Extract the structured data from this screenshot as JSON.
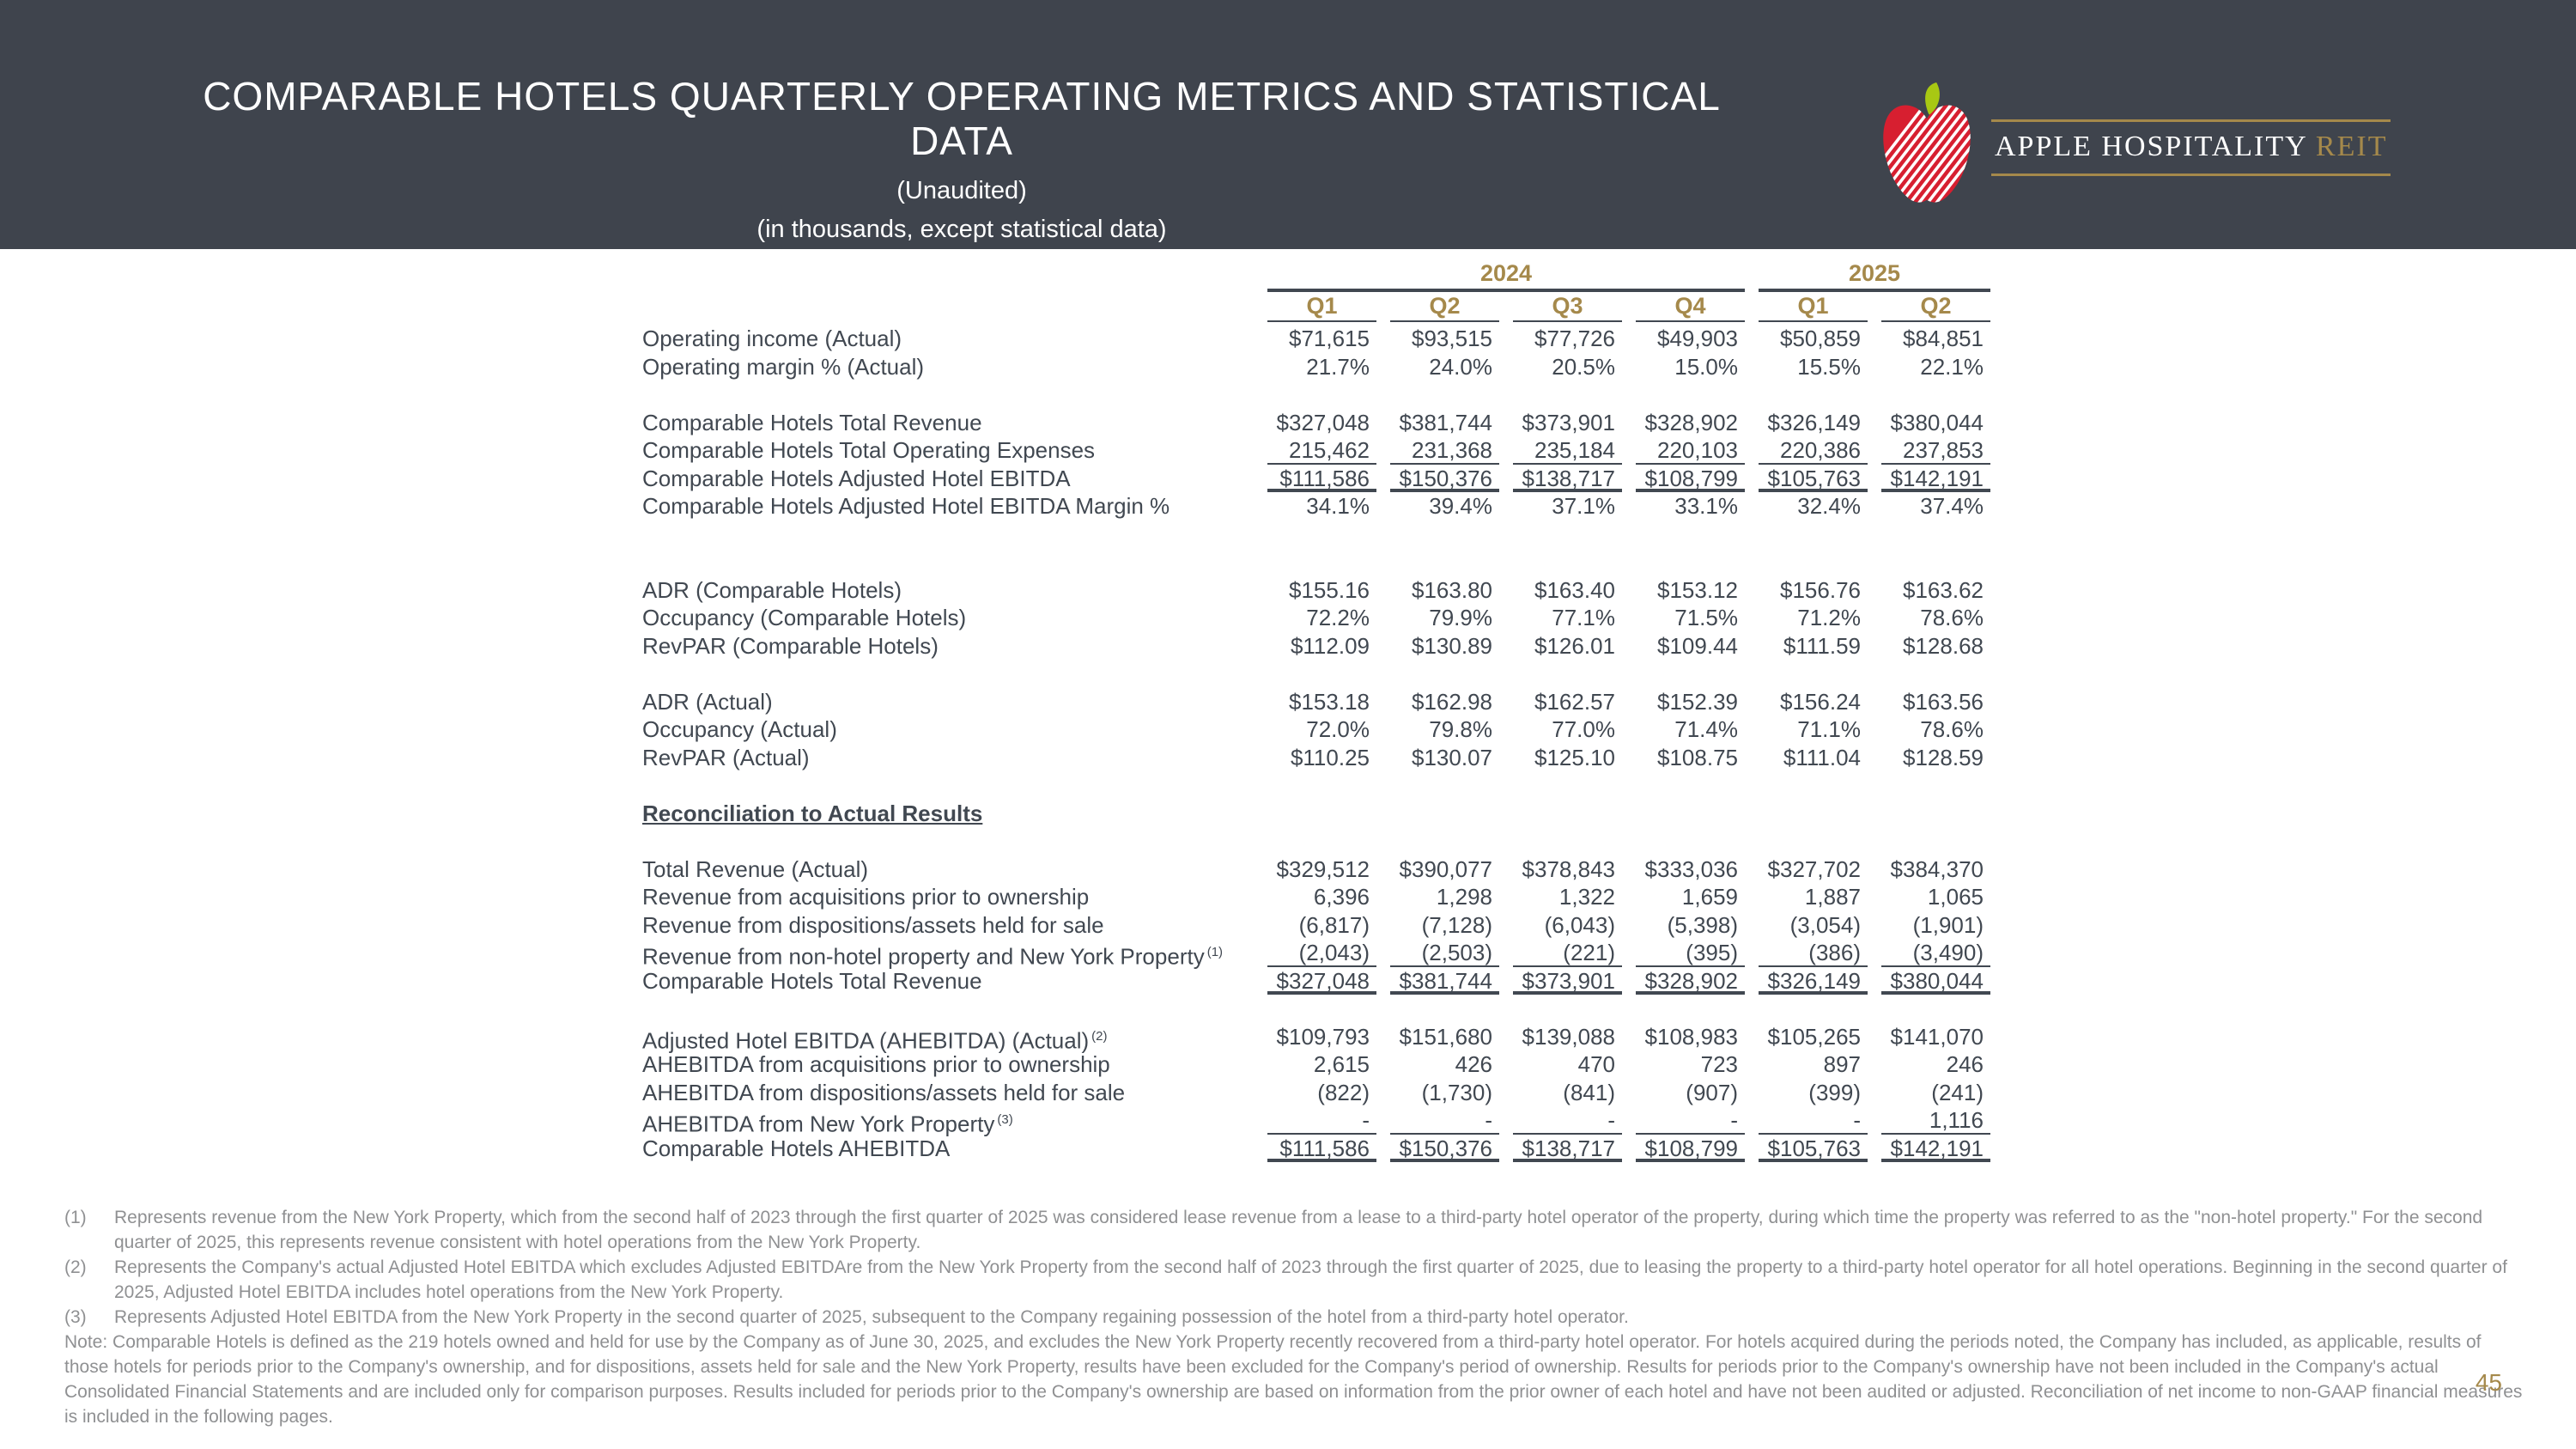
{
  "header": {
    "title": "COMPARABLE HOTELS QUARTERLY OPERATING METRICS AND STATISTICAL DATA",
    "subtitle_unaudited": "(Unaudited)",
    "subtitle_units": "(in thousands, except statistical data)",
    "logo": {
      "name_primary": "APPLE HOSPITALITY",
      "name_accent": "REIT"
    }
  },
  "colors": {
    "header_bg": "#3f444d",
    "accent_gold": "#a5894b",
    "table_text": "#414851",
    "footnote_gray": "#8f9092",
    "apple_red": "#d71f30",
    "leaf_green": "#a8c813"
  },
  "table": {
    "year_groups": [
      {
        "label": "2024",
        "span": 4
      },
      {
        "label": "2025",
        "span": 2
      }
    ],
    "quarter_headers": [
      "Q1",
      "Q2",
      "Q3",
      "Q4",
      "Q1",
      "Q2"
    ],
    "rows": [
      {
        "label": "Operating income (Actual)",
        "values": [
          "$71,615",
          "$93,515",
          "$77,726",
          "$49,903",
          "$50,859",
          "$84,851"
        ]
      },
      {
        "label": "Operating margin % (Actual)",
        "values": [
          "21.7%",
          "24.0%",
          "20.5%",
          "15.0%",
          "15.5%",
          "22.1%"
        ]
      },
      {
        "label": "Comparable Hotels Total Revenue",
        "space_before": 1,
        "values": [
          "$327,048",
          "$381,744",
          "$373,901",
          "$328,902",
          "$326,149",
          "$380,044"
        ]
      },
      {
        "label": "Comparable Hotels Total Operating Expenses",
        "underline": "single",
        "values": [
          "215,462",
          "231,368",
          "235,184",
          "220,103",
          "220,386",
          "237,853"
        ]
      },
      {
        "label": "Comparable Hotels Adjusted Hotel EBITDA",
        "underline": "double",
        "values": [
          "$111,586",
          "$150,376",
          "$138,717",
          "$108,799",
          "$105,763",
          "$142,191"
        ]
      },
      {
        "label": "Comparable Hotels Adjusted Hotel EBITDA Margin %",
        "values": [
          "34.1%",
          "39.4%",
          "37.1%",
          "33.1%",
          "32.4%",
          "37.4%"
        ]
      },
      {
        "label": "ADR (Comparable Hotels)",
        "space_before": 2,
        "values": [
          "$155.16",
          "$163.80",
          "$163.40",
          "$153.12",
          "$156.76",
          "$163.62"
        ]
      },
      {
        "label": "Occupancy (Comparable Hotels)",
        "values": [
          "72.2%",
          "79.9%",
          "77.1%",
          "71.5%",
          "71.2%",
          "78.6%"
        ]
      },
      {
        "label": "RevPAR (Comparable Hotels)",
        "values": [
          "$112.09",
          "$130.89",
          "$126.01",
          "$109.44",
          "$111.59",
          "$128.68"
        ]
      },
      {
        "label": "ADR (Actual)",
        "space_before": 1,
        "values": [
          "$153.18",
          "$162.98",
          "$162.57",
          "$152.39",
          "$156.24",
          "$163.56"
        ]
      },
      {
        "label": "Occupancy (Actual)",
        "values": [
          "72.0%",
          "79.8%",
          "77.0%",
          "71.4%",
          "71.1%",
          "78.6%"
        ]
      },
      {
        "label": "RevPAR (Actual)",
        "values": [
          "$110.25",
          "$130.07",
          "$125.10",
          "$108.75",
          "$111.04",
          "$128.59"
        ]
      },
      {
        "label": "Reconciliation to Actual Results",
        "section": true,
        "space_before": 1
      },
      {
        "label": "Total Revenue (Actual)",
        "space_before": 1,
        "values": [
          "$329,512",
          "$390,077",
          "$378,843",
          "$333,036",
          "$327,702",
          "$384,370"
        ]
      },
      {
        "label": "Revenue from acquisitions prior to ownership",
        "values": [
          "6,396",
          "1,298",
          "1,322",
          "1,659",
          "1,887",
          "1,065"
        ]
      },
      {
        "label": "Revenue from dispositions/assets held for sale",
        "values": [
          "(6,817)",
          "(7,128)",
          "(6,043)",
          "(5,398)",
          "(3,054)",
          "(1,901)"
        ]
      },
      {
        "label": "Revenue from non-hotel property and New York Property",
        "sup": "(1)",
        "underline": "single",
        "values": [
          "(2,043)",
          "(2,503)",
          "(221)",
          "(395)",
          "(386)",
          "(3,490)"
        ]
      },
      {
        "label": "Comparable Hotels Total Revenue",
        "underline": "double",
        "values": [
          "$327,048",
          "$381,744",
          "$373,901",
          "$328,902",
          "$326,149",
          "$380,044"
        ]
      },
      {
        "label": "Adjusted Hotel EBITDA (AHEBITDA) (Actual)",
        "sup": "(2)",
        "space_before": 1,
        "values": [
          "$109,793",
          "$151,680",
          "$139,088",
          "$108,983",
          "$105,265",
          "$141,070"
        ]
      },
      {
        "label": "AHEBITDA from acquisitions prior to ownership",
        "values": [
          "2,615",
          "426",
          "470",
          "723",
          "897",
          "246"
        ]
      },
      {
        "label": "AHEBITDA from dispositions/assets held for sale",
        "values": [
          "(822)",
          "(1,730)",
          "(841)",
          "(907)",
          "(399)",
          "(241)"
        ]
      },
      {
        "label": "AHEBITDA from New York Property",
        "sup": "(3)",
        "underline": "single",
        "values": [
          "-",
          "-",
          "-",
          "-",
          "-",
          "1,116"
        ]
      },
      {
        "label": "Comparable Hotels AHEBITDA",
        "underline": "double",
        "values": [
          "$111,586",
          "$150,376",
          "$138,717",
          "$108,799",
          "$105,763",
          "$142,191"
        ]
      }
    ]
  },
  "footnotes": [
    {
      "marker": "(1)",
      "text": "Represents revenue from the New York Property, which from the second half of 2023 through the first quarter of 2025 was considered lease revenue from a lease to a third-party hotel operator of the property, during which time the property was referred to as the \"non-hotel property.\" For the second quarter of 2025, this represents revenue consistent with hotel operations from the New York Property."
    },
    {
      "marker": "(2)",
      "text": "Represents the Company's actual Adjusted Hotel EBITDA which excludes Adjusted EBITDAre from the New York Property from the second half of 2023 through the first quarter of 2025, due to leasing the property to a third-party hotel operator for all hotel operations. Beginning in the second quarter of 2025, Adjusted Hotel EBITDA includes hotel operations from the New York Property."
    },
    {
      "marker": "(3)",
      "text": "Represents Adjusted Hotel EBITDA from the New York Property in the second quarter of 2025, subsequent to the Company regaining possession of the hotel from a third-party hotel operator."
    }
  ],
  "note": "Note:  Comparable Hotels is defined as the 219 hotels owned and held for use by the Company as of June 30, 2025, and excludes the New York Property recently recovered from a third-party hotel operator. For hotels acquired during the periods noted, the Company has included, as applicable, results of those hotels for periods prior to the Company's ownership, and for dispositions, assets held for sale and the New York Property, results have been excluded for the Company's period of ownership. Results for periods prior to the Company's ownership have not been included in the Company's actual Consolidated Financial Statements and are included only for comparison purposes. Results included for periods prior to the Company's ownership are based on information from the prior owner of each hotel and have not been audited or adjusted. Reconciliation of net income to non-GAAP financial measures is included in the following pages.",
  "page_number": "45"
}
